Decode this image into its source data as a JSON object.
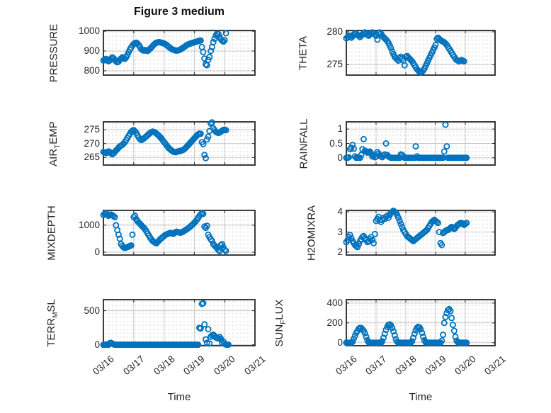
{
  "figure": {
    "title": "Figure 3 medium"
  },
  "x_axis": {
    "label": "Time",
    "tick_labels": [
      "03/16",
      "03/17",
      "03/18",
      "03/19",
      "03/20",
      "03/21"
    ],
    "lim_days": [
      0,
      5
    ],
    "start_day": 0,
    "step_hours": 1
  },
  "style": {
    "marker_color": "#0072BD",
    "marker_radius": 3.6,
    "marker_stroke_width": 1.8,
    "grid_color": "#c9c9c9",
    "minor_dot_color": "#c7c7c7",
    "frame_color": "#262626",
    "text_color": "#262626"
  },
  "chart_data": [
    {
      "type": "scatter",
      "name": "PRESSURE",
      "ylabel_parts": [
        [
          "PRESSURE",
          false
        ]
      ],
      "yticks": [
        800,
        900,
        1000
      ],
      "ytick_labels": [
        "800",
        "900",
        "1000"
      ],
      "ylim": [
        778,
        1004
      ],
      "show_x_tick_labels": false,
      "values": [
        852,
        856,
        860,
        855,
        848,
        852,
        860,
        868,
        863,
        855,
        848,
        843,
        846,
        855,
        862,
        868,
        865,
        860,
        868,
        880,
        895,
        908,
        918,
        928,
        935,
        940,
        942,
        938,
        930,
        920,
        910,
        905,
        902,
        905,
        902,
        900,
        905,
        912,
        918,
        925,
        932,
        938,
        942,
        944,
        945,
        944,
        942,
        940,
        938,
        935,
        930,
        925,
        920,
        915,
        910,
        907,
        905,
        903,
        902,
        903,
        905,
        908,
        912,
        916,
        920,
        925,
        930,
        933,
        936,
        938,
        940,
        942,
        944,
        946,
        948,
        950,
        952,
        953,
        920,
        895,
        862,
        833,
        828,
        855,
        870,
        900,
        920,
        945,
        962,
        978,
        988,
        985,
        972,
        960,
        952,
        948,
        955,
        990
      ]
    },
    {
      "type": "scatter",
      "name": "THETA",
      "ylabel_parts": [
        [
          "THETA",
          false
        ]
      ],
      "yticks": [
        275,
        280
      ],
      "ytick_labels": [
        "275",
        "280"
      ],
      "ylim": [
        273.4,
        280.2
      ],
      "show_x_tick_labels": false,
      "values": [
        279.0,
        279.2,
        279.4,
        279.3,
        279.1,
        279.3,
        279.6,
        279.8,
        279.7,
        279.5,
        279.4,
        279.2,
        279.4,
        279.6,
        279.8,
        279.9,
        279.7,
        279.5,
        279.4,
        279.6,
        279.8,
        279.9,
        279.8,
        279.6,
        279.4,
        278.8,
        279.8,
        279.9,
        279.7,
        279.4,
        279.2,
        279.0,
        278.8,
        278.6,
        278.3,
        277.9,
        277.5,
        277.0,
        276.6,
        276.2,
        276.0,
        275.8,
        275.6,
        276.0,
        276.2,
        275.9,
        275.6,
        274.9,
        276.2,
        276.3,
        276.1,
        275.9,
        275.7,
        275.5,
        275.2,
        274.9,
        274.6,
        274.3,
        274.1,
        273.9,
        273.8,
        273.9,
        274.1,
        274.4,
        274.8,
        275.2,
        275.6,
        276.0,
        276.4,
        276.8,
        277.2,
        277.6,
        278.0,
        278.9,
        279.1,
        278.9,
        278.7,
        278.6,
        278.5,
        278.4,
        278.2,
        278.0,
        277.7,
        277.4,
        277.1,
        276.8,
        276.5,
        276.2,
        275.9,
        275.7,
        275.6,
        275.5,
        275.6,
        275.7,
        275.6,
        275.5
      ]
    },
    {
      "type": "scatter",
      "name": "AIR_TEMP",
      "ylabel_parts": [
        [
          "AIR",
          false
        ],
        [
          "T",
          true
        ],
        [
          "EMP",
          false
        ]
      ],
      "yticks": [
        265,
        270,
        275
      ],
      "ytick_labels": [
        "265",
        "270",
        "275"
      ],
      "ylim": [
        262.3,
        277.8
      ],
      "show_x_tick_labels": false,
      "values": [
        267.0,
        266.8,
        266.6,
        266.9,
        267.2,
        267.0,
        266.5,
        266.2,
        266.5,
        267.0,
        267.5,
        268.0,
        268.5,
        269.0,
        269.3,
        269.6,
        270.0,
        270.5,
        271.2,
        272.0,
        272.8,
        273.5,
        274.2,
        274.6,
        274.8,
        274.4,
        273.8,
        273.0,
        272.2,
        271.6,
        271.3,
        271.5,
        271.8,
        272.2,
        272.6,
        273.0,
        273.4,
        273.8,
        274.1,
        274.3,
        274.2,
        274.0,
        273.6,
        273.2,
        272.8,
        272.3,
        271.8,
        271.2,
        270.6,
        270.0,
        269.4,
        268.8,
        268.3,
        267.9,
        267.5,
        267.2,
        267.0,
        266.9,
        267.0,
        267.2,
        267.3,
        267.4,
        267.5,
        267.7,
        268.0,
        268.4,
        268.9,
        269.4,
        269.9,
        270.4,
        270.9,
        271.4,
        271.9,
        272.4,
        272.9,
        273.3,
        273.6,
        273.5,
        270.5,
        269.8,
        265.9,
        264.8,
        271.5,
        272.5,
        274.5,
        277.2,
        277.6,
        275.5,
        274.8,
        274.3,
        274.0,
        273.8,
        274.0,
        274.3,
        274.6,
        274.9,
        275.0,
        274.8
      ]
    },
    {
      "type": "scatter",
      "name": "RAINFALL",
      "ylabel_parts": [
        [
          "RAINFALL",
          false
        ]
      ],
      "yticks": [
        0,
        0.5,
        1
      ],
      "ytick_labels": [
        "0",
        "0.5",
        "1"
      ],
      "ylim": [
        -0.25,
        1.25
      ],
      "show_x_tick_labels": false,
      "values": [
        0,
        0,
        0.02,
        0.3,
        0.35,
        0.45,
        0.32,
        0.05,
        0,
        0.02,
        0,
        0,
        0.1,
        0.3,
        0.65,
        0.25,
        0.22,
        0.18,
        0.2,
        0.22,
        0.15,
        0.05,
        0.08,
        0.02,
        0.05,
        0.2,
        0.15,
        0.1,
        0.05,
        0.02,
        0.08,
        0.12,
        0.5,
        0.1,
        0.05,
        0.02,
        0,
        0,
        0,
        0,
        0,
        0,
        0,
        0,
        0.12,
        0.1,
        0.05,
        0,
        0,
        0,
        0,
        0,
        0,
        0,
        0,
        0,
        0.4,
        0.05,
        0,
        0,
        0,
        0,
        0,
        0,
        0,
        0,
        0,
        0,
        0,
        0,
        0,
        0,
        0,
        0,
        0,
        0,
        0,
        0,
        0,
        0.22,
        1.15,
        0.4,
        0,
        0,
        0,
        0,
        0,
        0,
        0,
        0,
        0,
        0,
        0,
        0,
        0,
        0,
        0,
        0
      ]
    },
    {
      "type": "scatter",
      "name": "MIXDEPTH",
      "ylabel_parts": [
        [
          "MIXDEPTH",
          false
        ]
      ],
      "yticks": [
        0,
        1000
      ],
      "ytick_labels": [
        "0",
        "1000"
      ],
      "ylim": [
        -105,
        1550
      ],
      "show_x_tick_labels": false,
      "values": [
        1380,
        1420,
        1450,
        1400,
        1350,
        1380,
        1400,
        1370,
        1340,
        1300,
        1000,
        820,
        650,
        500,
        300,
        230,
        180,
        160,
        170,
        190,
        210,
        230,
        250,
        650,
        1300,
        1350,
        1220,
        1150,
        1100,
        1050,
        1000,
        950,
        900,
        850,
        780,
        700,
        620,
        540,
        470,
        420,
        380,
        350,
        330,
        380,
        430,
        480,
        520,
        560,
        600,
        640,
        660,
        680,
        700,
        720,
        700,
        680,
        700,
        740,
        760,
        750,
        730,
        720,
        740,
        760,
        790,
        820,
        850,
        880,
        920,
        960,
        1000,
        1040,
        1090,
        1140,
        1200,
        1270,
        1340,
        1400,
        1450,
        1420,
        950,
        900,
        980,
        650,
        560,
        480,
        420,
        300,
        250,
        200,
        150,
        80,
        40,
        260,
        300,
        180,
        90,
        50
      ]
    },
    {
      "type": "scatter",
      "name": "H2OMIXRA",
      "ylabel_parts": [
        [
          "H2OMIXRA",
          false
        ]
      ],
      "yticks": [
        2,
        3,
        4
      ],
      "ytick_labels": [
        "2",
        "3",
        "4"
      ],
      "ylim": [
        1.86,
        4.07
      ],
      "show_x_tick_labels": false,
      "values": [
        2.5,
        2.6,
        2.75,
        2.85,
        2.7,
        2.55,
        2.45,
        2.35,
        2.3,
        2.25,
        2.4,
        2.55,
        2.65,
        2.75,
        2.8,
        2.7,
        2.6,
        2.5,
        2.55,
        2.65,
        2.75,
        2.6,
        2.45,
        2.9,
        3.55,
        3.65,
        3.75,
        3.6,
        3.5,
        3.6,
        3.7,
        3.65,
        3.75,
        3.8,
        3.7,
        3.85,
        3.95,
        4.0,
        4.05,
        4.0,
        3.95,
        3.85,
        3.7,
        3.55,
        3.4,
        3.25,
        3.1,
        3.0,
        2.9,
        2.8,
        2.75,
        2.7,
        2.65,
        2.6,
        2.55,
        2.6,
        2.65,
        2.7,
        2.75,
        2.8,
        2.85,
        2.9,
        2.95,
        3.0,
        3.05,
        3.1,
        3.2,
        3.3,
        3.4,
        3.5,
        3.55,
        3.6,
        3.55,
        3.5,
        3.45,
        3.0,
        2.45,
        2.35,
        2.95,
        3.0,
        3.05,
        3.1,
        3.1,
        3.15,
        3.2,
        3.25,
        3.2,
        3.15,
        3.2,
        3.3,
        3.35,
        3.4,
        3.45,
        3.45,
        3.4,
        3.35,
        3.4,
        3.45
      ]
    },
    {
      "type": "scatter",
      "name": "TERR_MSL",
      "ylabel_parts": [
        [
          "TERR",
          false
        ],
        [
          "M",
          true
        ],
        [
          "SL",
          false
        ]
      ],
      "yticks": [
        0,
        500
      ],
      "ytick_labels": [
        "0",
        "500"
      ],
      "ylim": [
        -12,
        662
      ],
      "show_x_tick_labels": true,
      "values": [
        0,
        2,
        5,
        3,
        1,
        25,
        30,
        20,
        8,
        3,
        2,
        1,
        2,
        3,
        2,
        1,
        2,
        3,
        2,
        1,
        2,
        3,
        2,
        1,
        2,
        3,
        2,
        1,
        2,
        3,
        2,
        1,
        2,
        3,
        2,
        1,
        2,
        3,
        2,
        1,
        2,
        3,
        2,
        1,
        2,
        3,
        2,
        1,
        2,
        3,
        2,
        1,
        2,
        3,
        2,
        1,
        2,
        3,
        2,
        1,
        2,
        3,
        2,
        1,
        2,
        3,
        2,
        1,
        2,
        3,
        2,
        1,
        2,
        3,
        2,
        1,
        250,
        240,
        600,
        610,
        300,
        80,
        30,
        230,
        20,
        120,
        140,
        150,
        130,
        110,
        100,
        95,
        115,
        90,
        30,
        50,
        15,
        5,
        3,
        2
      ]
    },
    {
      "type": "scatter",
      "name": "SUN_FLUX",
      "ylabel_parts": [
        [
          "SUN",
          false
        ],
        [
          "F",
          true
        ],
        [
          "LUX",
          false
        ]
      ],
      "yticks": [
        0,
        200,
        400
      ],
      "ytick_labels": [
        "0",
        "200",
        "400"
      ],
      "ylim": [
        -30,
        435
      ],
      "show_x_tick_labels": true,
      "values": [
        0,
        0,
        0,
        0,
        0,
        10,
        40,
        70,
        100,
        120,
        140,
        150,
        148,
        135,
        120,
        95,
        60,
        25,
        5,
        0,
        0,
        0,
        0,
        0,
        0,
        0,
        0,
        0,
        0,
        15,
        50,
        90,
        130,
        160,
        180,
        185,
        175,
        150,
        115,
        75,
        35,
        10,
        0,
        0,
        0,
        0,
        0,
        0,
        0,
        0,
        0,
        0,
        0,
        15,
        50,
        90,
        125,
        150,
        160,
        155,
        135,
        100,
        60,
        25,
        5,
        0,
        0,
        0,
        0,
        0,
        0,
        0,
        0,
        0,
        0,
        0,
        0,
        20,
        80,
        200,
        260,
        300,
        330,
        340,
        320,
        250,
        180,
        120,
        60,
        20,
        5,
        0,
        0,
        0,
        0,
        0,
        0,
        0
      ]
    }
  ]
}
